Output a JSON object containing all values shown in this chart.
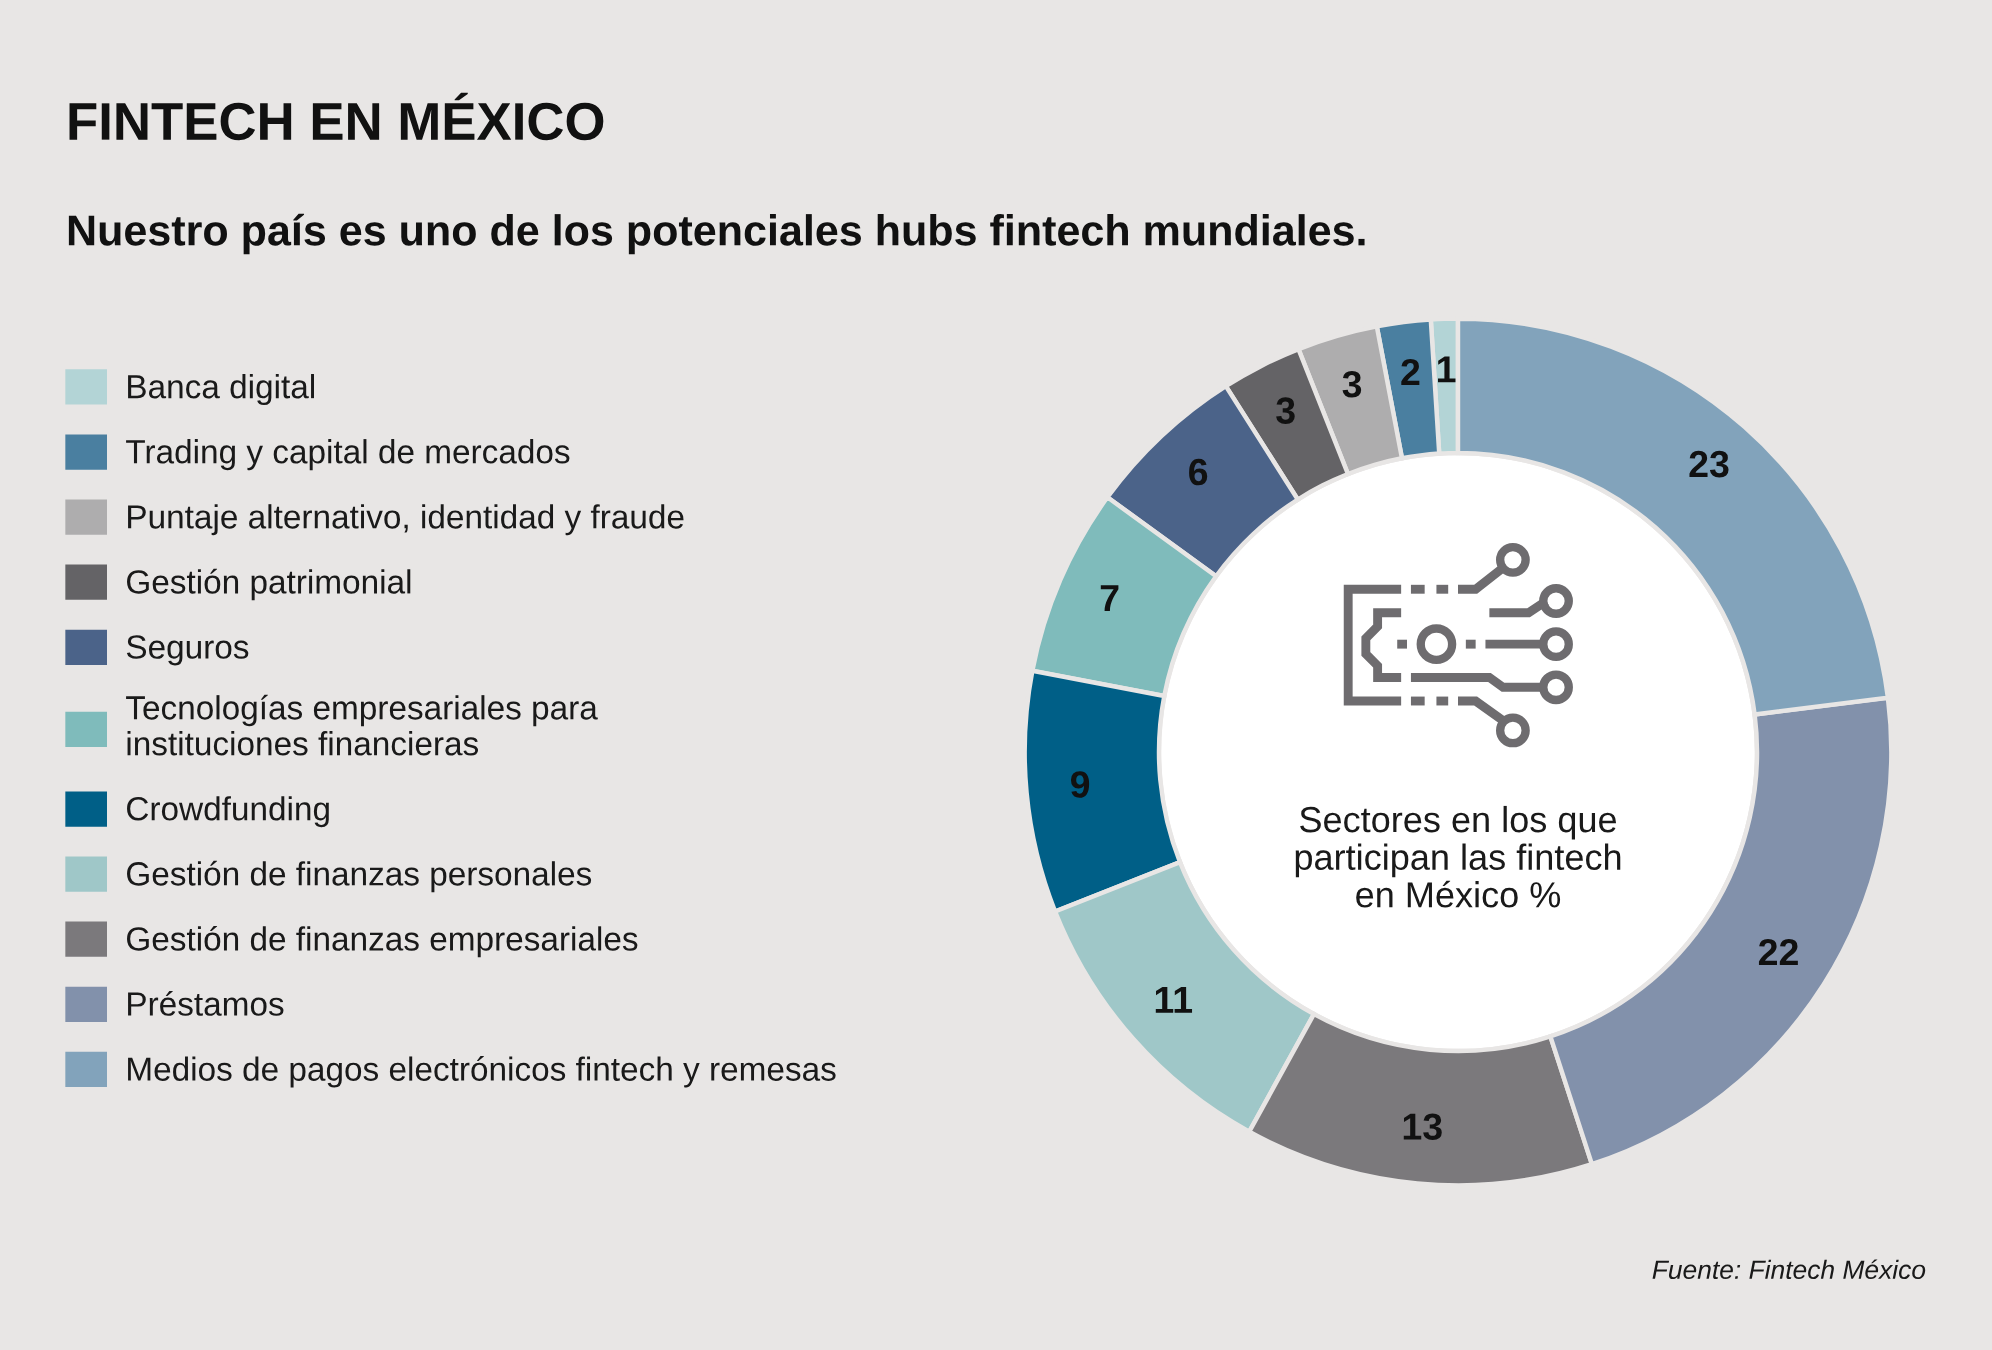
{
  "chart_data": {
    "type": "donut",
    "title": "FINTECH EN MÉXICO",
    "subtitle": "Nuestro país es uno de los potenciales hubs fintech mundiales.",
    "categories": [
      "Banca digital",
      "Trading y capital de mercados",
      "Puntaje alternativo, identidad y fraude",
      "Gestión patrimonial",
      "Seguros",
      "Tecnologías empresariales para\ninstituciones financieras",
      "Crowdfunding",
      "Gestión de finanzas personales",
      "Gestión de finanzas empresariales",
      "Préstamos",
      "Medios de pagos electrónicos fintech y remesas"
    ],
    "values": [
      1,
      2,
      3,
      3,
      6,
      7,
      9,
      11,
      13,
      22,
      23
    ],
    "colors": [
      "#b3d4d6",
      "#4a7fa0",
      "#aeadae",
      "#646366",
      "#4b6389",
      "#7fbbbb",
      "#005f87",
      "#9fc7c8",
      "#7b797c",
      "#8291ab",
      "#82a3bb"
    ],
    "data_labels": true,
    "legend": "left",
    "annotations": [
      "Sectores en los que\nparticipan las fintech\nen México %",
      "Fuente: Fintech México"
    ]
  }
}
